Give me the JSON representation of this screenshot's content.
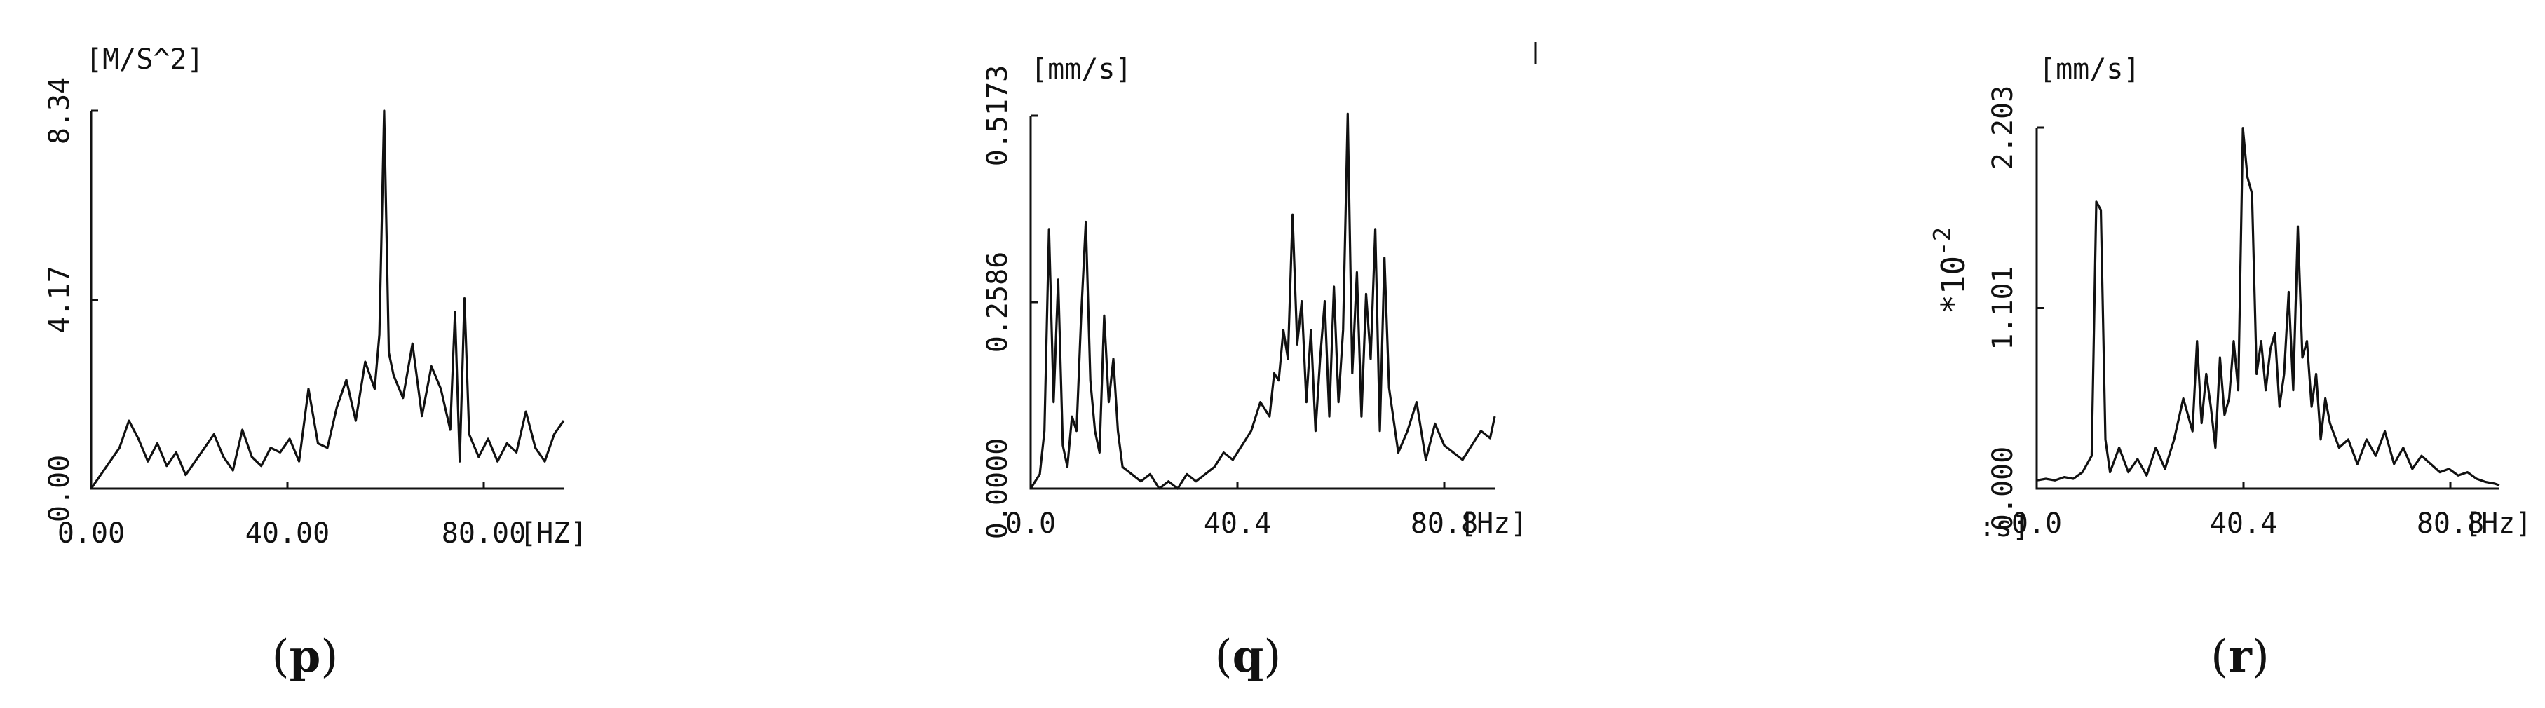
{
  "chart_data": [
    {
      "type": "line",
      "panel_label": "p",
      "unit_label": "[M/S^2]",
      "x_unit_label": "[HZ]",
      "yticks": [
        "0.00",
        "4.17",
        "8.34"
      ],
      "xticks": [
        "0.00",
        "40.00",
        "80.00"
      ],
      "ylim": [
        0,
        8.34
      ],
      "xlim": [
        0,
        100
      ],
      "grid": false,
      "x": [
        0,
        2,
        4,
        6,
        8,
        10,
        12,
        14,
        16,
        18,
        20,
        22,
        24,
        26,
        28,
        30,
        32,
        34,
        36,
        38,
        40,
        42,
        44,
        46,
        48,
        50,
        52,
        54,
        56,
        58,
        60,
        61,
        62,
        63,
        64,
        66,
        68,
        70,
        72,
        74,
        76,
        77,
        78,
        79,
        80,
        82,
        84,
        86,
        88,
        90,
        92,
        94,
        96,
        98,
        100
      ],
      "values": [
        0.0,
        0.3,
        0.6,
        0.9,
        1.5,
        1.1,
        0.6,
        1.0,
        0.5,
        0.8,
        0.3,
        0.6,
        0.9,
        1.2,
        0.7,
        0.4,
        1.3,
        0.7,
        0.5,
        0.9,
        0.8,
        1.1,
        0.6,
        2.2,
        1.0,
        0.9,
        1.8,
        2.4,
        1.5,
        2.8,
        2.2,
        3.4,
        8.34,
        3.0,
        2.5,
        2.0,
        3.2,
        1.6,
        2.7,
        2.2,
        1.3,
        3.9,
        0.6,
        4.2,
        1.2,
        0.7,
        1.1,
        0.6,
        1.0,
        0.8,
        1.7,
        0.9,
        0.6,
        1.2,
        1.5
      ]
    },
    {
      "type": "line",
      "panel_label": "q",
      "unit_label": "[mm/s]",
      "x_unit_label": "[Hz]",
      "yticks": [
        "0.0000",
        "0.2586",
        "0.5173"
      ],
      "xticks": [
        "0.0",
        "40.4",
        "80.8"
      ],
      "ylim": [
        0,
        0.5173
      ],
      "xlim": [
        0,
        101
      ],
      "grid": false,
      "x": [
        0,
        2,
        3,
        4,
        5,
        6,
        7,
        8,
        9,
        10,
        11,
        12,
        13,
        14,
        15,
        16,
        17,
        18,
        19,
        20,
        22,
        24,
        26,
        28,
        30,
        32,
        34,
        36,
        38,
        40,
        42,
        44,
        46,
        48,
        50,
        52,
        53,
        54,
        55,
        56,
        57,
        58,
        59,
        60,
        61,
        62,
        63,
        64,
        65,
        66,
        67,
        68,
        69,
        70,
        71,
        72,
        73,
        74,
        75,
        76,
        77,
        78,
        80,
        82,
        84,
        86,
        88,
        90,
        92,
        94,
        96,
        98,
        100,
        101
      ],
      "values": [
        0.0,
        0.02,
        0.08,
        0.36,
        0.12,
        0.29,
        0.06,
        0.03,
        0.1,
        0.08,
        0.24,
        0.37,
        0.15,
        0.08,
        0.05,
        0.24,
        0.12,
        0.18,
        0.08,
        0.03,
        0.02,
        0.01,
        0.02,
        0.0,
        0.01,
        0.0,
        0.02,
        0.01,
        0.02,
        0.03,
        0.05,
        0.04,
        0.06,
        0.08,
        0.12,
        0.1,
        0.16,
        0.15,
        0.22,
        0.18,
        0.38,
        0.2,
        0.26,
        0.12,
        0.22,
        0.08,
        0.18,
        0.26,
        0.1,
        0.28,
        0.12,
        0.22,
        0.52,
        0.16,
        0.3,
        0.1,
        0.27,
        0.18,
        0.36,
        0.08,
        0.32,
        0.14,
        0.05,
        0.08,
        0.12,
        0.04,
        0.09,
        0.06,
        0.05,
        0.04,
        0.06,
        0.08,
        0.07,
        0.1
      ]
    },
    {
      "type": "line",
      "panel_label": "r",
      "unit_label": "[mm/s]",
      "x_unit_label": "[Hz]",
      "scale_label": "*10",
      "scale_exponent": "-2",
      "yticks": [
        "0.000",
        "1.101",
        "2.203"
      ],
      "xticks": [
        "0.0",
        "40.4",
        "80.8"
      ],
      "ylim": [
        0,
        2.203
      ],
      "xlim": [
        0,
        101
      ],
      "grid": false,
      "x": [
        0,
        2,
        4,
        6,
        8,
        10,
        12,
        13,
        14,
        15,
        16,
        18,
        20,
        22,
        24,
        26,
        28,
        30,
        32,
        34,
        35,
        36,
        37,
        38,
        39,
        40,
        41,
        42,
        43,
        44,
        45,
        46,
        47,
        48,
        49,
        50,
        51,
        52,
        53,
        54,
        55,
        56,
        57,
        58,
        59,
        60,
        61,
        62,
        63,
        64,
        66,
        68,
        70,
        72,
        74,
        76,
        78,
        80,
        82,
        84,
        86,
        88,
        90,
        92,
        94,
        96,
        98,
        100,
        101
      ],
      "values": [
        0.05,
        0.06,
        0.05,
        0.07,
        0.06,
        0.1,
        0.2,
        1.75,
        1.7,
        0.3,
        0.1,
        0.25,
        0.1,
        0.18,
        0.08,
        0.25,
        0.12,
        0.3,
        0.55,
        0.35,
        0.9,
        0.4,
        0.7,
        0.5,
        0.25,
        0.8,
        0.45,
        0.55,
        0.9,
        0.6,
        2.2,
        1.9,
        1.8,
        0.7,
        0.9,
        0.6,
        0.85,
        0.95,
        0.5,
        0.7,
        1.2,
        0.6,
        1.6,
        0.8,
        0.9,
        0.5,
        0.7,
        0.3,
        0.55,
        0.4,
        0.25,
        0.3,
        0.15,
        0.3,
        0.2,
        0.35,
        0.15,
        0.25,
        0.12,
        0.2,
        0.15,
        0.1,
        0.12,
        0.08,
        0.1,
        0.06,
        0.04,
        0.03,
        0.02
      ]
    }
  ]
}
